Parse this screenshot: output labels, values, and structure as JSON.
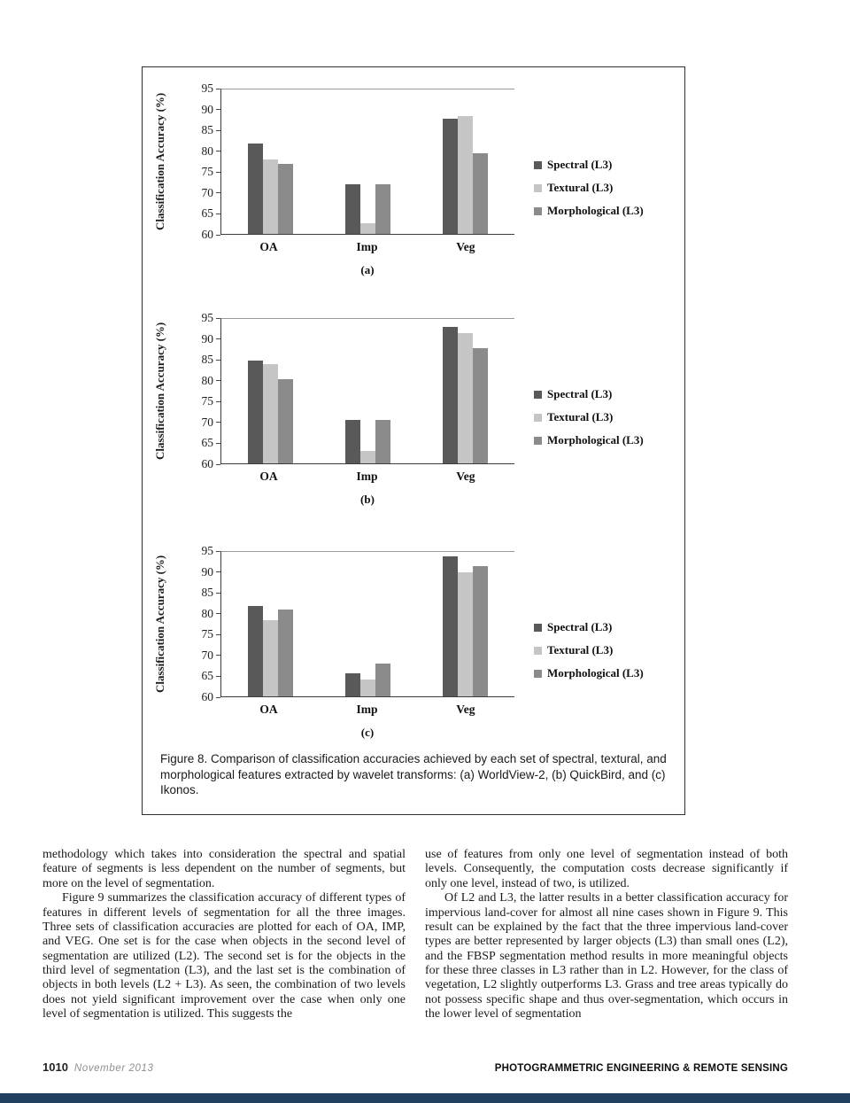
{
  "figure": {
    "caption": "Figure 8.  Comparison of classification accuracies achieved by each set of spectral, textural, and morphological features extracted by wavelet transforms: (a) WorldView-2, (b) QuickBird, and (c) Ikonos."
  },
  "chart_data": [
    {
      "type": "bar",
      "panel_label": "(a)",
      "satellite": "WorldView-2",
      "ylabel": "Classification Accuracy (%)",
      "ylim": [
        60,
        95
      ],
      "ytick_step": 5,
      "grid": false,
      "legend_position": "right",
      "categories": [
        "OA",
        "Imp",
        "Veg"
      ],
      "series": [
        {
          "name": "Spectral (L3)",
          "color": "#595959",
          "values": [
            82,
            72,
            88
          ]
        },
        {
          "name": "Textural (L3)",
          "color": "#c5c5c5",
          "values": [
            78,
            62.5,
            88.5
          ]
        },
        {
          "name": "Morphological (L3)",
          "color": "#8b8b8b",
          "values": [
            77,
            72,
            79.5
          ]
        }
      ]
    },
    {
      "type": "bar",
      "panel_label": "(b)",
      "satellite": "QuickBird",
      "ylabel": "Classification Accuracy (%)",
      "ylim": [
        60,
        95
      ],
      "ytick_step": 5,
      "grid": false,
      "legend_position": "right",
      "categories": [
        "OA",
        "Imp",
        "Veg"
      ],
      "series": [
        {
          "name": "Spectral (L3)",
          "color": "#595959",
          "values": [
            85,
            70.5,
            93
          ]
        },
        {
          "name": "Textural (L3)",
          "color": "#c5c5c5",
          "values": [
            84,
            63,
            91.5
          ]
        },
        {
          "name": "Morphological (L3)",
          "color": "#8b8b8b",
          "values": [
            80.5,
            70.5,
            88
          ]
        }
      ]
    },
    {
      "type": "bar",
      "panel_label": "(c)",
      "satellite": "Ikonos",
      "ylabel": "Classification Accuracy (%)",
      "ylim": [
        60,
        95
      ],
      "ytick_step": 5,
      "grid": false,
      "legend_position": "right",
      "categories": [
        "OA",
        "Imp",
        "Veg"
      ],
      "series": [
        {
          "name": "Spectral (L3)",
          "color": "#595959",
          "values": [
            82,
            65.5,
            94
          ]
        },
        {
          "name": "Textural (L3)",
          "color": "#c5c5c5",
          "values": [
            78.5,
            64,
            90
          ]
        },
        {
          "name": "Morphological (L3)",
          "color": "#8b8b8b",
          "values": [
            81,
            68,
            91.5
          ]
        }
      ]
    }
  ],
  "body": {
    "left_column": [
      {
        "indent": false,
        "text": "methodology which takes into consideration the spectral and spatial feature of segments is less dependent on the number of segments, but more on the level of segmentation."
      },
      {
        "indent": true,
        "text": "Figure 9 summarizes the classification accuracy of different types of features in different levels of segmentation for all the three images. Three sets of classification accuracies are plotted for each of OA, IMP, and VEG. One set is for the case when objects in the second level of segmentation are utilized (L2). The second set is for the objects in the third level of segmentation (L3), and the last set is the combination of objects in both levels (L2 + L3). As seen, the combination of two levels does not yield significant improvement over the case when only one level of segmentation is utilized. This suggests the"
      }
    ],
    "right_column": [
      {
        "indent": false,
        "text": "use of features from only one level of segmentation instead of both levels. Consequently, the computation costs decrease significantly if only one level, instead of two, is utilized."
      },
      {
        "indent": true,
        "text": "Of L2 and L3, the latter results in a better classification accuracy for impervious land-cover for almost all nine cases shown in Figure 9. This result can be explained by the fact that the three impervious land-cover types are better represented by larger objects (L3) than small ones (L2), and the FBSP segmentation method results in more meaningful objects for these three classes in L3 rather than in L2. However, for the class of vegetation, L2 slightly outperforms L3. Grass and tree areas typically do not possess specific shape and thus over-segmentation, which occurs in the lower level of segmentation"
      }
    ]
  },
  "footer": {
    "page_number": "1010",
    "issue": "November 2013",
    "journal": "PHOTOGRAMMETRIC ENGINEERING & REMOTE SENSING",
    "bar_color": "#21405f"
  }
}
